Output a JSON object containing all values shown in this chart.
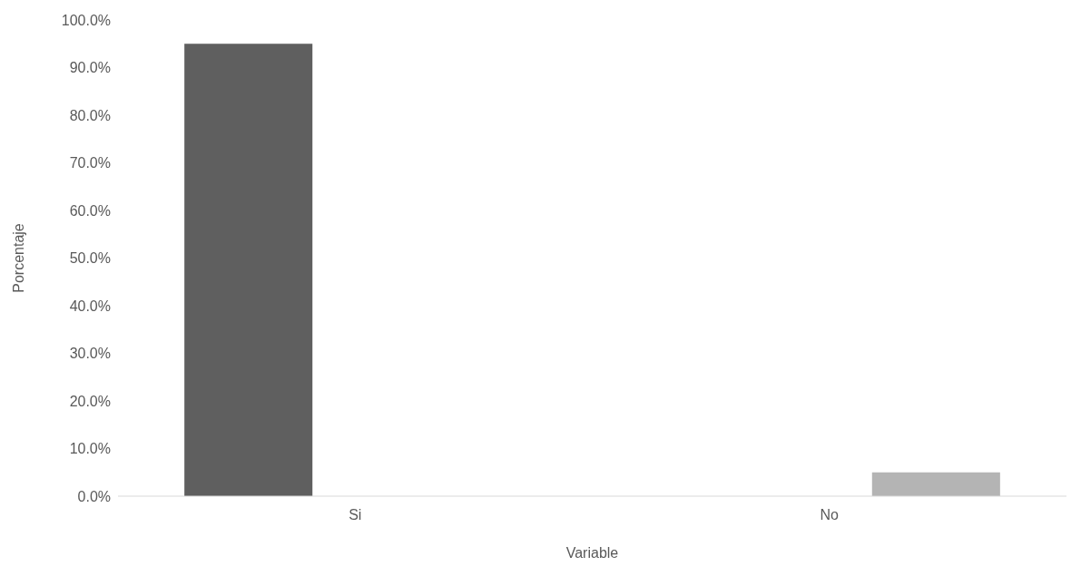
{
  "chart_data": {
    "type": "bar",
    "xlabel": "Variable",
    "ylabel": "Porcentaje",
    "categories": [
      "Si",
      "No"
    ],
    "series": [
      {
        "color": "#5f5f5f",
        "values": [
          95,
          null
        ]
      },
      {
        "color": "#b4b4b4",
        "values": [
          null,
          5
        ]
      }
    ],
    "ylim": [
      0,
      100
    ],
    "yticks": [
      {
        "value": 0,
        "label": "0.0%"
      },
      {
        "value": 10,
        "label": "10.0%"
      },
      {
        "value": 20,
        "label": "20.0%"
      },
      {
        "value": 30,
        "label": "30.0%"
      },
      {
        "value": 40,
        "label": "40.0%"
      },
      {
        "value": 50,
        "label": "50.0%"
      },
      {
        "value": 60,
        "label": "60.0%"
      },
      {
        "value": 70,
        "label": "70.0%"
      },
      {
        "value": 80,
        "label": "80.0%"
      },
      {
        "value": 90,
        "label": "90.0%"
      },
      {
        "value": 100,
        "label": "100.0%"
      }
    ],
    "grid": false
  }
}
